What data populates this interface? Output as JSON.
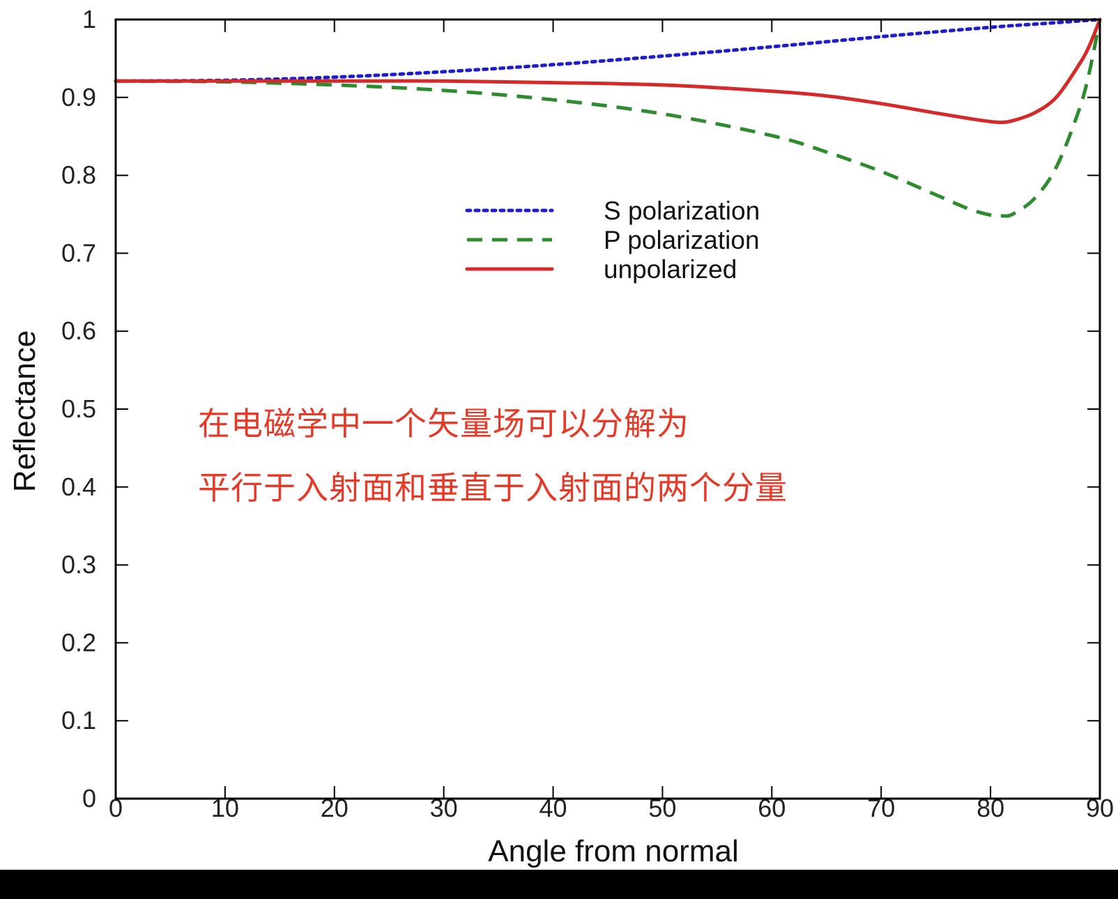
{
  "chart_data": {
    "type": "line",
    "xlabel": "Angle from normal",
    "ylabel": "Reflectance",
    "xlim": [
      0,
      90
    ],
    "ylim": [
      0,
      1
    ],
    "xticks": [
      "0",
      "10",
      "20",
      "30",
      "40",
      "50",
      "60",
      "70",
      "80",
      "90"
    ],
    "yticks": [
      "0",
      "0.1",
      "0.2",
      "0.3",
      "0.4",
      "0.5",
      "0.6",
      "0.7",
      "0.8",
      "0.9",
      "1"
    ],
    "grid": false,
    "legend_position": "center",
    "series": [
      {
        "name": "S polarization",
        "style": "dotted",
        "color": "#1d1dcc",
        "points": [
          [
            0,
            0.921
          ],
          [
            10,
            0.922
          ],
          [
            20,
            0.926
          ],
          [
            30,
            0.933
          ],
          [
            40,
            0.942
          ],
          [
            50,
            0.953
          ],
          [
            60,
            0.965
          ],
          [
            70,
            0.978
          ],
          [
            80,
            0.99
          ],
          [
            85,
            0.995
          ],
          [
            90,
            1.0
          ]
        ]
      },
      {
        "name": "P polarization",
        "style": "dashed",
        "color": "#2e8b2e",
        "points": [
          [
            0,
            0.921
          ],
          [
            10,
            0.92
          ],
          [
            20,
            0.916
          ],
          [
            30,
            0.909
          ],
          [
            40,
            0.897
          ],
          [
            50,
            0.879
          ],
          [
            60,
            0.851
          ],
          [
            65,
            0.83
          ],
          [
            70,
            0.805
          ],
          [
            75,
            0.775
          ],
          [
            78,
            0.757
          ],
          [
            80,
            0.749
          ],
          [
            81,
            0.748
          ],
          [
            82,
            0.75
          ],
          [
            84,
            0.77
          ],
          [
            86,
            0.81
          ],
          [
            88,
            0.88
          ],
          [
            89,
            0.93
          ],
          [
            90,
            1.0
          ]
        ]
      },
      {
        "name": "unpolarized",
        "style": "solid",
        "color": "#d42a2a",
        "points": [
          [
            0,
            0.921
          ],
          [
            10,
            0.921
          ],
          [
            20,
            0.921
          ],
          [
            30,
            0.921
          ],
          [
            40,
            0.919
          ],
          [
            50,
            0.916
          ],
          [
            60,
            0.908
          ],
          [
            65,
            0.902
          ],
          [
            70,
            0.892
          ],
          [
            75,
            0.88
          ],
          [
            78,
            0.873
          ],
          [
            80,
            0.869
          ],
          [
            81,
            0.868
          ],
          [
            82,
            0.87
          ],
          [
            84,
            0.88
          ],
          [
            86,
            0.9
          ],
          [
            88,
            0.94
          ],
          [
            89,
            0.965
          ],
          [
            90,
            1.0
          ]
        ]
      }
    ],
    "annotations": [
      {
        "text": "在电磁学中一个矢量场可以分解为",
        "color": "#e53a28"
      },
      {
        "text": "平行于入射面和垂直于入射面的两个分量",
        "color": "#e53a28"
      }
    ]
  }
}
